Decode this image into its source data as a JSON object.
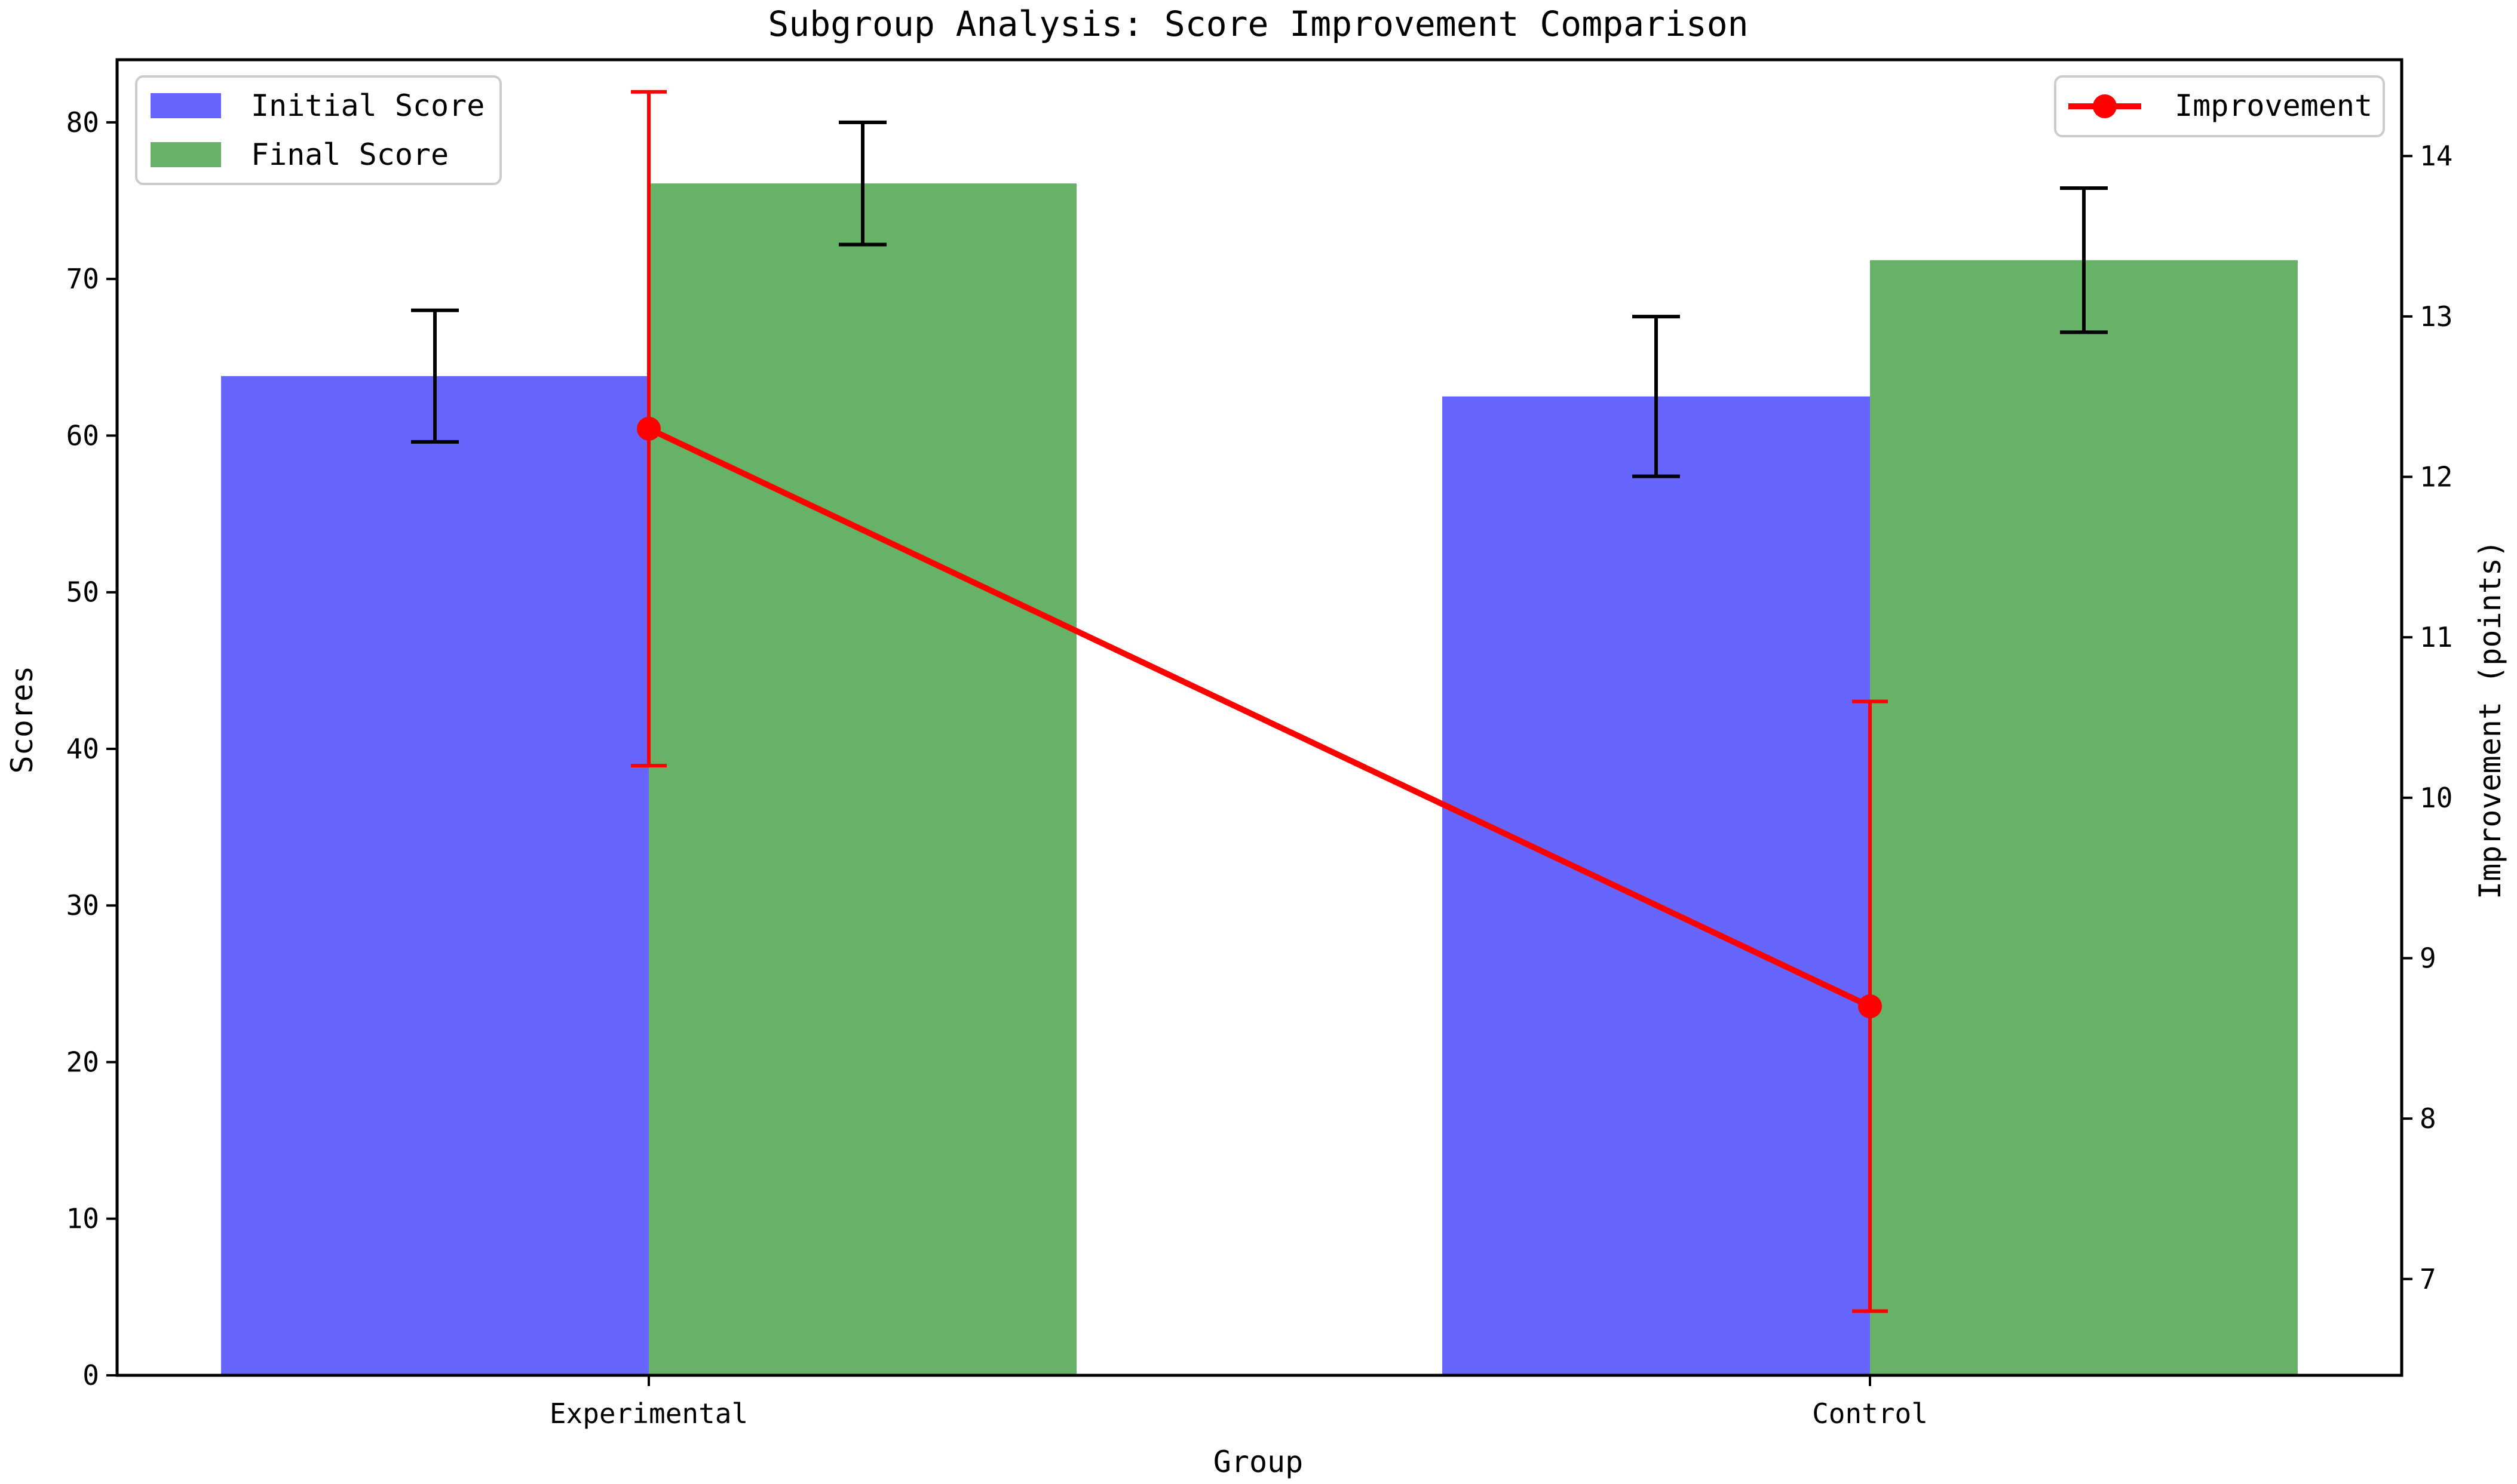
{
  "chart_data": {
    "type": "bar",
    "title": "Subgroup Analysis: Score Improvement Comparison",
    "xlabel": "Group",
    "ylabel": "Scores",
    "y2label": "Improvement (points)",
    "categories": [
      "Experimental",
      "Control"
    ],
    "ylim": [
      0,
      84
    ],
    "y2lim": [
      6.4,
      14.6
    ],
    "yticks": [
      0,
      10,
      20,
      30,
      40,
      50,
      60,
      70,
      80
    ],
    "y2ticks": [
      7,
      8,
      9,
      10,
      11,
      12,
      13,
      14
    ],
    "series": [
      {
        "name": "Initial Score",
        "values": [
          63.8,
          62.5
        ],
        "errors": [
          4.2,
          5.1
        ],
        "color": "#6666ff"
      },
      {
        "name": "Final Score",
        "values": [
          76.1,
          71.2
        ],
        "errors": [
          3.9,
          4.6
        ],
        "color": "#66b266"
      }
    ],
    "line_series": {
      "name": "Improvement",
      "values": [
        12.3,
        8.7
      ],
      "errors": [
        2.1,
        1.9
      ],
      "color": "#ff0000"
    },
    "grid": false,
    "legend_left": "top-left",
    "legend_right": "top-right"
  }
}
